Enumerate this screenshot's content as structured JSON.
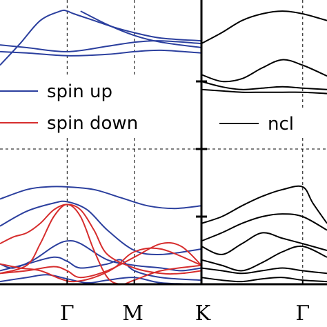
{
  "chart_data": [
    {
      "type": "line",
      "panel": "left",
      "title": "",
      "xlabel": "",
      "ylabel": "",
      "x_ticks": [
        {
          "label": "Γ",
          "x": 0.5
        },
        {
          "label": "M",
          "x": 1.0
        },
        {
          "label": "K",
          "x": 1.5
        }
      ],
      "x_gridlines": [
        0.5,
        1.0
      ],
      "y_gridlines": [
        0.0
      ],
      "xlim": [
        0.0,
        1.5
      ],
      "ylim": [
        -1.0,
        1.0
      ],
      "grid": "dashed",
      "legend": {
        "placement": "top-left",
        "entries": [
          {
            "label": "spin up",
            "color": "#2b3f9e"
          },
          {
            "label": "spin down",
            "color": "#d62d2d"
          }
        ]
      },
      "series": [
        {
          "name": "spin up",
          "color": "#2b3f9e",
          "bands": [
            {
              "x": [
                0,
                0.15,
                0.3,
                0.45,
                0.5,
                0.55,
                0.7,
                0.85,
                1.0,
                1.2,
                1.5
              ],
              "y": [
                0.62,
                0.78,
                0.95,
                1.02,
                1.02,
                1.0,
                0.95,
                0.9,
                0.86,
                0.82,
                0.8
              ]
            },
            {
              "x": [
                0,
                0.2,
                0.5,
                0.8,
                1.0,
                1.2,
                1.5
              ],
              "y": [
                0.77,
                0.75,
                0.72,
                0.76,
                0.79,
                0.8,
                0.78
              ]
            },
            {
              "x": [
                0,
                0.2,
                0.5,
                0.8,
                1.0,
                1.2,
                1.5
              ],
              "y": [
                0.72,
                0.71,
                0.69,
                0.7,
                0.72,
                0.73,
                0.71
              ]
            },
            {
              "x": [
                0.6,
                0.8,
                1.0,
                1.2,
                1.5
              ],
              "y": [
                1.02,
                0.92,
                0.84,
                0.79,
                0.75
              ]
            },
            {
              "x": [
                0,
                0.2,
                0.35,
                0.5,
                0.7,
                0.9,
                1.1,
                1.3,
                1.5
              ],
              "y": [
                -0.37,
                -0.3,
                -0.28,
                -0.28,
                -0.3,
                -0.36,
                -0.42,
                -0.44,
                -0.42
              ]
            },
            {
              "x": [
                0,
                0.2,
                0.4,
                0.5,
                0.65,
                0.8,
                1.0,
                1.2,
                1.5
              ],
              "y": [
                -0.57,
                -0.46,
                -0.4,
                -0.39,
                -0.45,
                -0.6,
                -0.75,
                -0.78,
                -0.74
              ]
            },
            {
              "x": [
                0,
                0.1,
                0.25,
                0.4,
                0.5,
                0.6,
                0.8,
                1.0,
                1.2,
                1.35,
                1.5
              ],
              "y": [
                -0.85,
                -0.88,
                -0.82,
                -0.72,
                -0.68,
                -0.7,
                -0.82,
                -0.86,
                -0.88,
                -0.9,
                -0.88
              ]
            },
            {
              "x": [
                0,
                0.2,
                0.4,
                0.5,
                0.6,
                0.8,
                0.9,
                1.0,
                1.2,
                1.5
              ],
              "y": [
                -0.9,
                -0.85,
                -0.8,
                -0.83,
                -0.88,
                -0.85,
                -0.82,
                -0.9,
                -0.95,
                -0.97
              ]
            },
            {
              "x": [
                0,
                0.2,
                0.35,
                0.5,
                0.65,
                0.8,
                1.0,
                1.2,
                1.5
              ],
              "y": [
                -0.98,
                -0.95,
                -0.93,
                -0.96,
                -0.99,
                -0.97,
                -0.95,
                -0.99,
                -1.0
              ]
            }
          ]
        },
        {
          "name": "spin down",
          "color": "#d62d2d",
          "bands": [
            {
              "x": [
                0,
                0.1,
                0.2,
                0.3,
                0.4,
                0.5,
                0.6,
                0.7,
                0.8,
                1.0,
                1.2,
                1.35,
                1.5
              ],
              "y": [
                -0.7,
                -0.65,
                -0.62,
                -0.55,
                -0.45,
                -0.41,
                -0.45,
                -0.6,
                -0.78,
                -0.88,
                -0.92,
                -0.92,
                -0.9
              ]
            },
            {
              "x": [
                0,
                0.2,
                0.3,
                0.4,
                0.5,
                0.6,
                0.7,
                0.8,
                0.9,
                1.0,
                1.2,
                1.5
              ],
              "y": [
                -0.92,
                -0.86,
                -0.7,
                -0.5,
                -0.41,
                -0.5,
                -0.75,
                -0.95,
                -1.0,
                -0.97,
                -0.9,
                -0.86
              ]
            },
            {
              "x": [
                0,
                0.15,
                0.3,
                0.45,
                0.55,
                0.7,
                0.85,
                1.0,
                1.2,
                1.5
              ],
              "y": [
                -0.85,
                -0.88,
                -0.9,
                -0.96,
                -0.98,
                -0.95,
                -0.88,
                -0.76,
                -0.74,
                -0.86
              ]
            },
            {
              "x": [
                0,
                0.2,
                0.4,
                0.5,
                0.6,
                0.8,
                1.0,
                1.2,
                1.35,
                1.5
              ],
              "y": [
                -0.92,
                -0.9,
                -0.87,
                -0.9,
                -0.95,
                -0.9,
                -0.8,
                -0.7,
                -0.72,
                -0.86
              ]
            }
          ]
        }
      ]
    },
    {
      "type": "line",
      "panel": "right",
      "title": "",
      "xlabel": "",
      "ylabel": "",
      "x_ticks": [
        {
          "label": "Γ",
          "x": 0.5
        }
      ],
      "x_gridlines": [
        0.5
      ],
      "y_gridlines": [
        0.0
      ],
      "xlim": [
        0.0,
        0.62
      ],
      "ylim": [
        -1.0,
        1.0
      ],
      "grid": "dashed",
      "legend": {
        "placement": "top-right",
        "entries": [
          {
            "label": "ncl",
            "color": "#000000"
          }
        ]
      },
      "series": [
        {
          "name": "ncl",
          "color": "#000000",
          "bands": [
            {
              "x": [
                0,
                0.1,
                0.2,
                0.3,
                0.4,
                0.5,
                0.62
              ],
              "y": [
                0.78,
                0.86,
                0.95,
                1.0,
                1.02,
                1.0,
                0.95
              ]
            },
            {
              "x": [
                0,
                0.1,
                0.2,
                0.3,
                0.4,
                0.5,
                0.62
              ],
              "y": [
                0.55,
                0.5,
                0.52,
                0.6,
                0.66,
                0.62,
                0.54
              ]
            },
            {
              "x": [
                0,
                0.1,
                0.2,
                0.3,
                0.4,
                0.5,
                0.62
              ],
              "y": [
                0.5,
                0.46,
                0.44,
                0.45,
                0.46,
                0.45,
                0.44
              ]
            },
            {
              "x": [
                0,
                0.1,
                0.2,
                0.3,
                0.4,
                0.5,
                0.62
              ],
              "y": [
                0.44,
                0.43,
                0.42,
                0.42,
                0.42,
                0.42,
                0.41
              ]
            },
            {
              "x": [
                0,
                0.1,
                0.2,
                0.3,
                0.4,
                0.5,
                0.55,
                0.62
              ],
              "y": [
                -0.55,
                -0.5,
                -0.42,
                -0.35,
                -0.3,
                -0.28,
                -0.4,
                -0.55
              ]
            },
            {
              "x": [
                0,
                0.1,
                0.2,
                0.3,
                0.4,
                0.5,
                0.62
              ],
              "y": [
                -0.68,
                -0.62,
                -0.55,
                -0.5,
                -0.48,
                -0.5,
                -0.6
              ]
            },
            {
              "x": [
                0,
                0.1,
                0.2,
                0.3,
                0.4,
                0.5,
                0.62
              ],
              "y": [
                -0.72,
                -0.78,
                -0.7,
                -0.62,
                -0.66,
                -0.7,
                -0.75
              ]
            },
            {
              "x": [
                0,
                0.1,
                0.2,
                0.3,
                0.4,
                0.5,
                0.62
              ],
              "y": [
                -0.82,
                -0.86,
                -0.9,
                -0.84,
                -0.76,
                -0.72,
                -0.8
              ]
            },
            {
              "x": [
                0,
                0.1,
                0.2,
                0.3,
                0.4,
                0.5,
                0.62
              ],
              "y": [
                -0.88,
                -0.9,
                -0.92,
                -0.9,
                -0.88,
                -0.9,
                -0.92
              ]
            },
            {
              "x": [
                0,
                0.1,
                0.2,
                0.3,
                0.4,
                0.5,
                0.62
              ],
              "y": [
                -0.95,
                -0.97,
                -0.98,
                -0.96,
                -0.95,
                -0.97,
                -0.98
              ]
            }
          ]
        }
      ]
    }
  ],
  "colors": {
    "spin_up": "#2b3f9e",
    "spin_down": "#d62d2d",
    "ncl": "#000000",
    "axes": "#000000"
  }
}
